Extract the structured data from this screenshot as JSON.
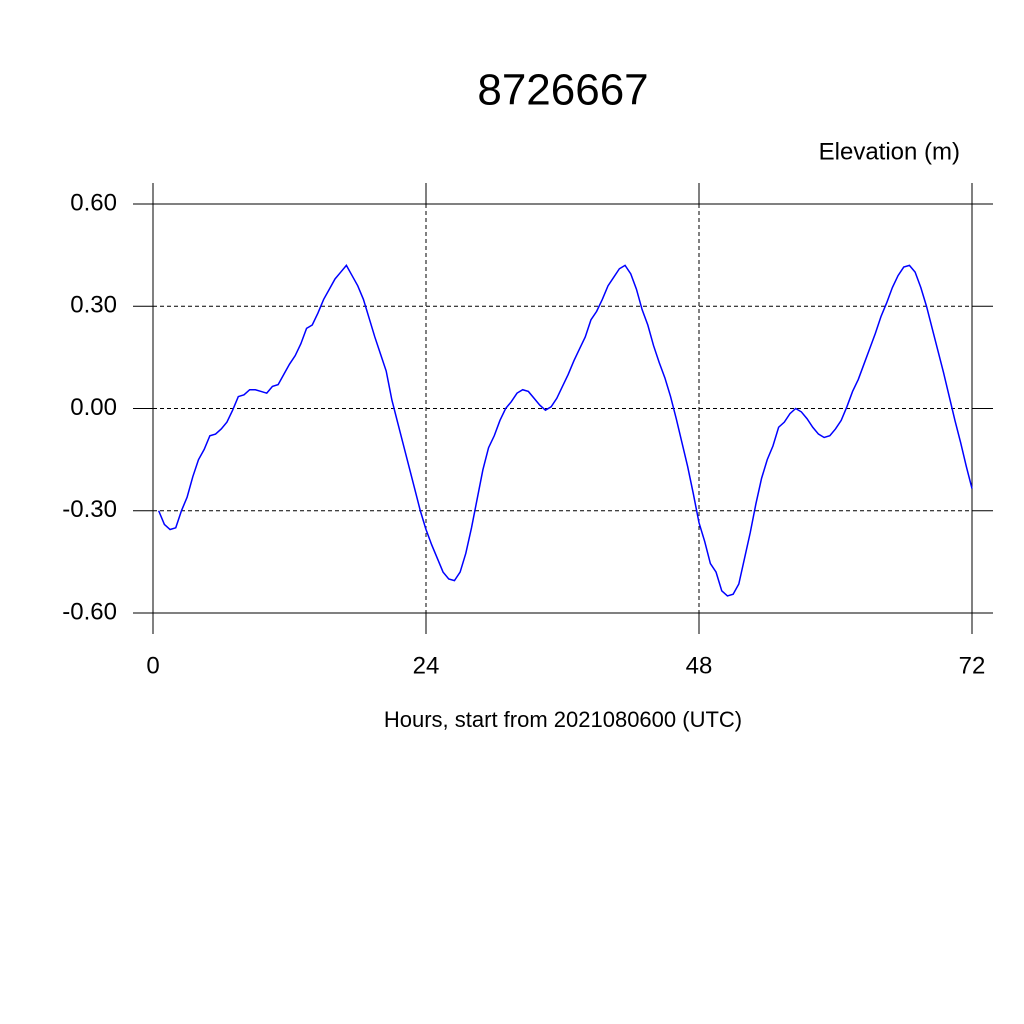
{
  "chart_data": {
    "type": "line",
    "title": "8726667",
    "subtitle": "Elevation (m)",
    "x_label": "Hours, start from 2021080600 (UTC)",
    "x": [
      0.5,
      1,
      1.5,
      2,
      2.5,
      3,
      3.5,
      4,
      4.5,
      5,
      5.5,
      6,
      6.5,
      7,
      7.5,
      8,
      8.5,
      9,
      9.5,
      10,
      10.5,
      11,
      11.5,
      12,
      12.5,
      13,
      13.5,
      14,
      14.5,
      15,
      15.5,
      16,
      16.5,
      17,
      17.5,
      18,
      18.5,
      19,
      19.5,
      20,
      20.5,
      21,
      21.5,
      22,
      22.5,
      23,
      23.5,
      24,
      24.5,
      25,
      25.5,
      26,
      26.5,
      27,
      27.5,
      28,
      28.5,
      29,
      29.5,
      30,
      30.5,
      31,
      31.5,
      32,
      32.5,
      33,
      33.5,
      34,
      34.5,
      35,
      35.5,
      36,
      36.5,
      37,
      37.5,
      38,
      38.5,
      39,
      39.5,
      40,
      40.5,
      41,
      41.5,
      42,
      42.5,
      43,
      43.5,
      44,
      44.5,
      45,
      45.5,
      46,
      46.5,
      47,
      47.5,
      48,
      48.5,
      49,
      49.5,
      50,
      50.5,
      51,
      51.5,
      52,
      52.5,
      53,
      53.5,
      54,
      54.5,
      55,
      55.5,
      56,
      56.5,
      57,
      57.5,
      58,
      58.5,
      59,
      59.5,
      60,
      60.5,
      61,
      61.5,
      62,
      62.5,
      63,
      63.5,
      64,
      64.5,
      65,
      65.5,
      66,
      66.5,
      67,
      67.5,
      68,
      68.5,
      69,
      69.5,
      70,
      70.5,
      71,
      71.5,
      72
    ],
    "series": [
      {
        "color": "#0000ff",
        "values": [
          -0.3,
          -0.34,
          -0.355,
          -0.35,
          -0.3,
          -0.26,
          -0.2,
          -0.15,
          -0.12,
          -0.08,
          -0.075,
          -0.06,
          -0.04,
          -0.005,
          0.035,
          0.04,
          0.055,
          0.055,
          0.05,
          0.045,
          0.065,
          0.07,
          0.1,
          0.13,
          0.155,
          0.19,
          0.235,
          0.245,
          0.28,
          0.32,
          0.35,
          0.38,
          0.4,
          0.42,
          0.39,
          0.36,
          0.32,
          0.265,
          0.21,
          0.16,
          0.11,
          0.025,
          -0.04,
          -0.105,
          -0.17,
          -0.235,
          -0.3,
          -0.355,
          -0.4,
          -0.44,
          -0.48,
          -0.5,
          -0.505,
          -0.48,
          -0.425,
          -0.35,
          -0.265,
          -0.18,
          -0.115,
          -0.08,
          -0.035,
          0,
          0.02,
          0.045,
          0.055,
          0.05,
          0.03,
          0.01,
          -0.005,
          0.005,
          0.03,
          0.065,
          0.1,
          0.14,
          0.175,
          0.21,
          0.26,
          0.285,
          0.32,
          0.36,
          0.385,
          0.41,
          0.42,
          0.395,
          0.35,
          0.29,
          0.245,
          0.185,
          0.135,
          0.09,
          0.035,
          -0.03,
          -0.1,
          -0.17,
          -0.25,
          -0.335,
          -0.39,
          -0.455,
          -0.48,
          -0.535,
          -0.55,
          -0.545,
          -0.515,
          -0.44,
          -0.365,
          -0.28,
          -0.205,
          -0.15,
          -0.11,
          -0.055,
          -0.04,
          -0.015,
          0,
          -0.01,
          -0.03,
          -0.055,
          -0.075,
          -0.085,
          -0.08,
          -0.06,
          -0.035,
          0.005,
          0.05,
          0.085,
          0.13,
          0.175,
          0.22,
          0.27,
          0.31,
          0.355,
          0.39,
          0.415,
          0.42,
          0.4,
          0.355,
          0.3,
          0.235,
          0.17,
          0.105,
          0.035,
          -0.035,
          -0.1,
          -0.17,
          -0.235
        ]
      }
    ],
    "xlim": [
      0,
      72
    ],
    "xticks": [
      0,
      24,
      48,
      72
    ],
    "ylim": [
      -0.6,
      0.6
    ],
    "yticks": [
      {
        "value": -0.6,
        "label": "-0.60"
      },
      {
        "value": -0.3,
        "label": "-0.30"
      },
      {
        "value": 0,
        "label": "0.00"
      },
      {
        "value": 0.3,
        "label": "0.30"
      },
      {
        "value": 0.6,
        "label": "0.60"
      }
    ],
    "grid": true
  }
}
